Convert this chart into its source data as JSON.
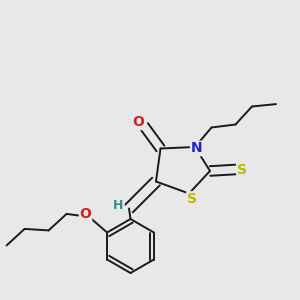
{
  "background_color": "#e8e8e8",
  "bond_color": "#1a1a1a",
  "atoms": {
    "N": {
      "color": "#2222cc",
      "fontsize": 10
    },
    "O": {
      "color": "#cc2222",
      "fontsize": 10
    },
    "S": {
      "color": "#bbbb00",
      "fontsize": 10
    },
    "H": {
      "color": "#3a8a8a",
      "fontsize": 9
    }
  },
  "line_width": 1.4,
  "ring_S_label": "S",
  "thioxo_S_label": "S"
}
